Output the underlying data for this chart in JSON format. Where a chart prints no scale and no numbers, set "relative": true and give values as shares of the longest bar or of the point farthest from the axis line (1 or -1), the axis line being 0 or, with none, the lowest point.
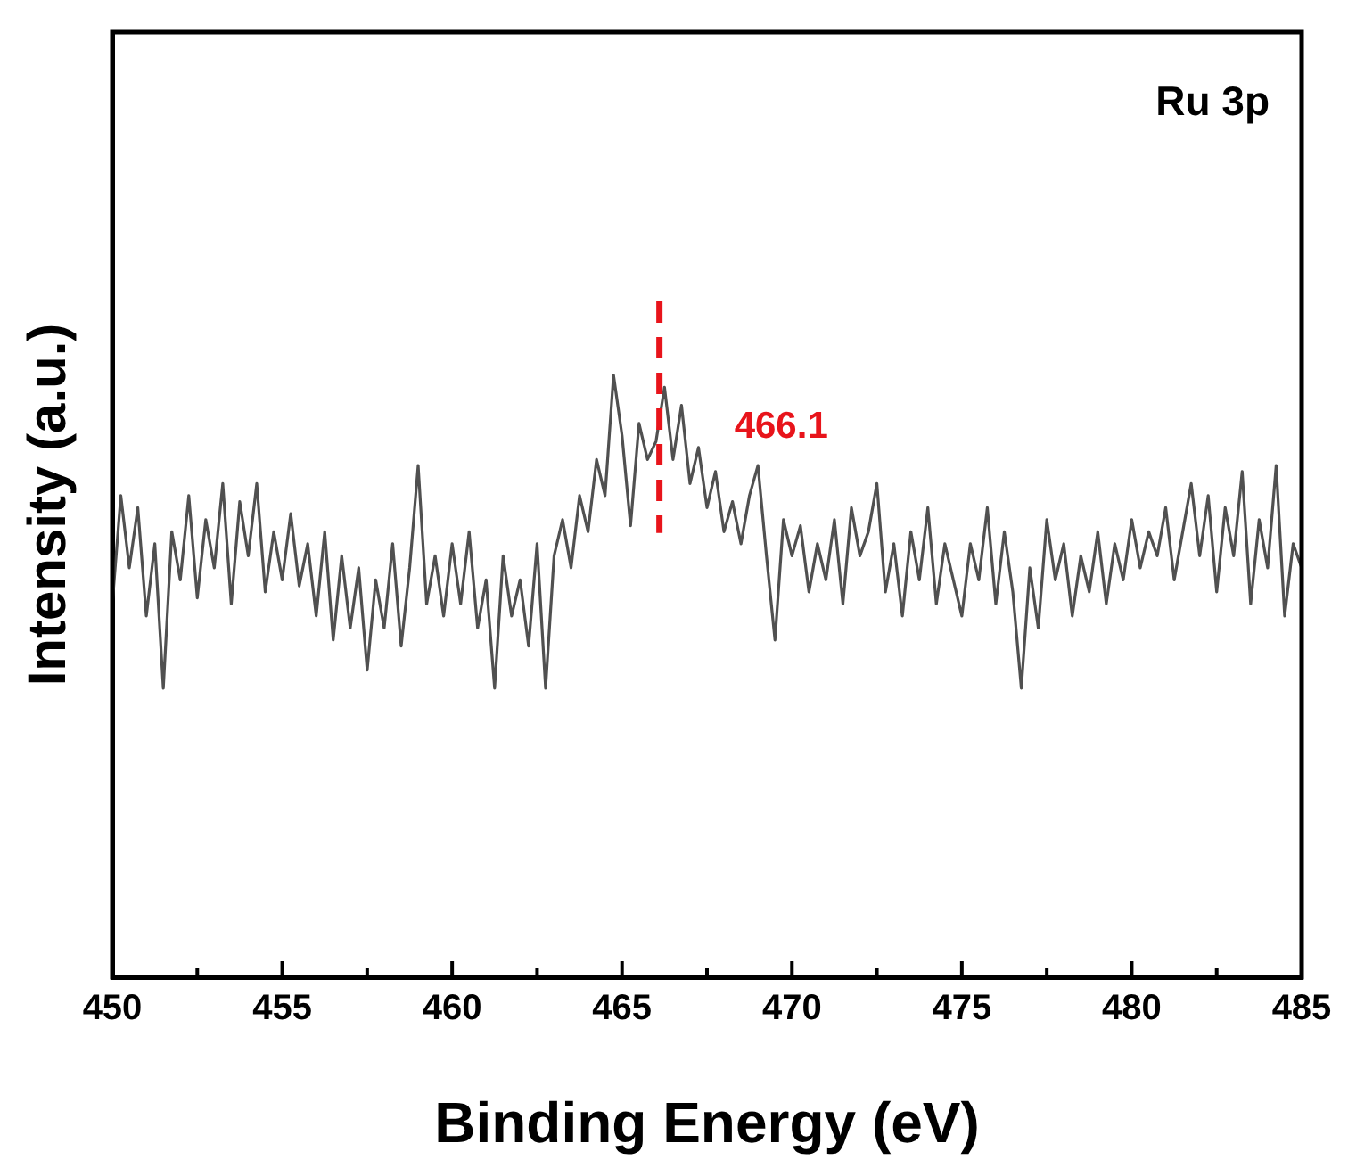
{
  "chart_data": {
    "type": "line",
    "relative": true,
    "xlabel": "Binding Energy (eV)",
    "ylabel": "Intensity (a.u.)",
    "annotations": [
      "Ru 3p"
    ],
    "xlim": [
      450,
      485
    ],
    "xticks": [
      450,
      455,
      460,
      465,
      470,
      475,
      480,
      485
    ],
    "grid": false,
    "legend": false,
    "marker": "none",
    "line_style": "solid",
    "ref_lines": [
      {
        "axis": "x",
        "value": 466.1,
        "label": "466.1",
        "color": "#e8141b",
        "line_style": "dashed"
      }
    ],
    "x": [
      450,
      450.25,
      450.5,
      450.75,
      451,
      451.25,
      451.5,
      451.75,
      452,
      452.25,
      452.5,
      452.75,
      453,
      453.25,
      453.5,
      453.75,
      454,
      454.25,
      454.5,
      454.75,
      455,
      455.25,
      455.5,
      455.75,
      456,
      456.25,
      456.5,
      456.75,
      457,
      457.25,
      457.5,
      457.75,
      458,
      458.25,
      458.5,
      458.75,
      459,
      459.25,
      459.5,
      459.75,
      460,
      460.25,
      460.5,
      460.75,
      461,
      461.25,
      461.5,
      461.75,
      462,
      462.25,
      462.5,
      462.75,
      463,
      463.25,
      463.5,
      463.75,
      464,
      464.25,
      464.5,
      464.75,
      465,
      465.25,
      465.5,
      465.75,
      466,
      466.25,
      466.5,
      466.75,
      467,
      467.25,
      467.5,
      467.75,
      468,
      468.25,
      468.5,
      468.75,
      469,
      469.25,
      469.5,
      469.75,
      470,
      470.25,
      470.5,
      470.75,
      471,
      471.25,
      471.5,
      471.75,
      472,
      472.25,
      472.5,
      472.75,
      473,
      473.25,
      473.5,
      473.75,
      474,
      474.25,
      474.5,
      474.75,
      475,
      475.25,
      475.5,
      475.75,
      476,
      476.25,
      476.5,
      476.75,
      477,
      477.25,
      477.5,
      477.75,
      478,
      478.25,
      478.5,
      478.75,
      479,
      479.25,
      479.5,
      479.75,
      480,
      480.25,
      480.5,
      480.75,
      481,
      481.25,
      481.5,
      481.75,
      482,
      482.25,
      482.5,
      482.75,
      483,
      483.25,
      483.5,
      483.75,
      484,
      484.25,
      484.5,
      484.75,
      485
    ],
    "series": [
      {
        "color": "#505050",
        "values": [
          0.62,
          0.8,
          0.68,
          0.78,
          0.6,
          0.72,
          0.48,
          0.74,
          0.66,
          0.8,
          0.63,
          0.76,
          0.68,
          0.82,
          0.62,
          0.79,
          0.7,
          0.82,
          0.64,
          0.74,
          0.66,
          0.77,
          0.65,
          0.72,
          0.6,
          0.74,
          0.56,
          0.7,
          0.58,
          0.68,
          0.51,
          0.66,
          0.58,
          0.72,
          0.55,
          0.68,
          0.85,
          0.62,
          0.7,
          0.6,
          0.72,
          0.62,
          0.74,
          0.58,
          0.66,
          0.48,
          0.7,
          0.6,
          0.66,
          0.55,
          0.72,
          0.48,
          0.7,
          0.76,
          0.68,
          0.8,
          0.74,
          0.86,
          0.8,
          1,
          0.9,
          0.75,
          0.92,
          0.86,
          0.89,
          0.98,
          0.86,
          0.95,
          0.82,
          0.88,
          0.78,
          0.84,
          0.74,
          0.79,
          0.72,
          0.8,
          0.85,
          0.7,
          0.56,
          0.76,
          0.7,
          0.75,
          0.64,
          0.72,
          0.66,
          0.76,
          0.62,
          0.78,
          0.7,
          0.74,
          0.82,
          0.64,
          0.72,
          0.6,
          0.74,
          0.66,
          0.78,
          0.62,
          0.72,
          0.66,
          0.6,
          0.72,
          0.66,
          0.78,
          0.62,
          0.74,
          0.64,
          0.48,
          0.68,
          0.58,
          0.76,
          0.66,
          0.72,
          0.6,
          0.7,
          0.64,
          0.74,
          0.62,
          0.72,
          0.66,
          0.76,
          0.68,
          0.74,
          0.7,
          0.78,
          0.66,
          0.74,
          0.82,
          0.7,
          0.8,
          0.64,
          0.78,
          0.7,
          0.84,
          0.62,
          0.76,
          0.68,
          0.85,
          0.6,
          0.72,
          0.68
        ]
      }
    ]
  }
}
